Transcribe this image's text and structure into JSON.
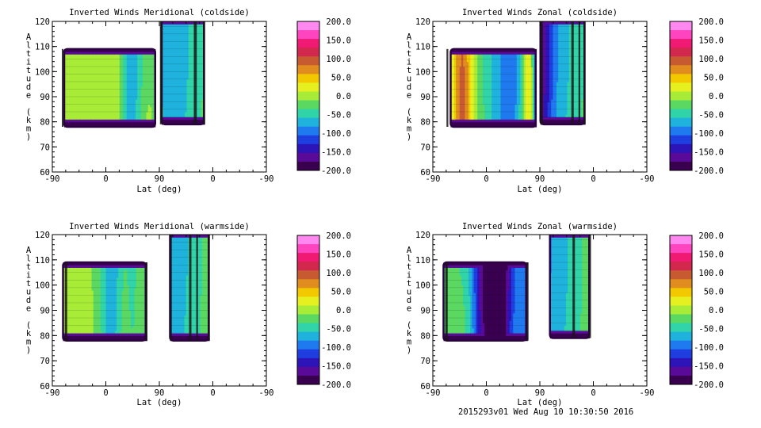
{
  "footer": "2015293v01 Wed Aug 10 10:30:50 2016",
  "colorbar": {
    "labels": [
      "200.0",
      "150.0",
      "100.0",
      "50.0",
      "0.0",
      "-50.0",
      "-100.0",
      "-150.0",
      "-200.0"
    ],
    "colors": [
      "#ff88f0",
      "#ff44c0",
      "#f01a72",
      "#d2284e",
      "#c85a32",
      "#e08c1e",
      "#f2c800",
      "#e6f020",
      "#a8ec38",
      "#5ad862",
      "#30d4a8",
      "#1eb2dc",
      "#1e7aee",
      "#1e3ee0",
      "#2c14b8",
      "#5a0a98",
      "#3a0050"
    ]
  },
  "chart_data": [
    {
      "type": "heatmap",
      "title": "Inverted Winds Meridional (coldside)",
      "xlabel": "Lat (deg)",
      "ylabel": "Altitude (km)",
      "xticks": [
        "-90",
        "0",
        "90",
        "0",
        "-90"
      ],
      "yticks": [
        "120",
        "110",
        "100",
        "90",
        "80",
        "70",
        "60"
      ],
      "ylim": [
        60,
        120
      ],
      "zlim": [
        -200,
        200
      ],
      "blobs": [
        [
          -90,
          88,
          113,
          78,
          109,
          0
        ],
        [
          -10,
          50,
          -14,
          35,
          120,
          78
        ],
        [
          -3,
          48,
          99,
          18,
          110,
          77
        ],
        [
          -30,
          40,
          88,
          12,
          84,
          62
        ],
        [
          78,
          74,
          62,
          21,
          105,
          82
        ],
        [
          37,
          20,
          95,
          24,
          97,
          45
        ]
      ]
    },
    {
      "type": "heatmap",
      "title": "Inverted Winds Zonal (coldside)",
      "xlabel": "Lat (deg)",
      "ylabel": "Altitude (km)",
      "xticks": [
        "-90",
        "0",
        "90",
        "0",
        "-90"
      ],
      "yticks": [
        "120",
        "110",
        "100",
        "90",
        "80",
        "70",
        "60"
      ],
      "ylim": [
        60,
        120
      ],
      "zlim": [
        -200,
        200
      ],
      "blobs": [
        [
          -10,
          20,
          -14,
          35,
          122,
          79
        ],
        [
          -90,
          88,
          113,
          78,
          109,
          0
        ],
        [
          -3,
          48,
          99,
          18,
          110,
          77
        ],
        [
          95,
          -40,
          87,
          16,
          84,
          62
        ],
        [
          88,
          68,
          90,
          12,
          88,
          82
        ],
        [
          65,
          75,
          105,
          10,
          97,
          47
        ],
        [
          -80,
          92,
          111,
          18,
          120,
          86
        ],
        [
          -34,
          26,
          90,
          30,
          100,
          74
        ]
      ]
    },
    {
      "type": "heatmap",
      "title": "Inverted Winds Meridional (warmside)",
      "xlabel": "Lat (deg)",
      "ylabel": "Altitude (km)",
      "xticks": [
        "-90",
        "0",
        "90",
        "0",
        "-90"
      ],
      "yticks": [
        "120",
        "110",
        "100",
        "90",
        "80",
        "70",
        "60"
      ],
      "ylim": [
        60,
        120
      ],
      "zlim": [
        -200,
        200
      ],
      "blobs": [
        [
          -100,
          12,
          107,
          20,
          108,
          62
        ],
        [
          -90,
          86,
          113,
          78,
          109,
          0
        ],
        [
          -3,
          48,
          99,
          18,
          110,
          77
        ],
        [
          62,
          62,
          112,
          14,
          116,
          60
        ],
        [
          52,
          25,
          90,
          20,
          84,
          77
        ],
        [
          28,
          10,
          95,
          26,
          98,
          41
        ]
      ]
    },
    {
      "type": "heatmap",
      "title": "Inverted Winds Zonal (warmside)",
      "xlabel": "Lat (deg)",
      "ylabel": "Altitude (km)",
      "xticks": [
        "-90",
        "0",
        "90",
        "0",
        "-90"
      ],
      "yticks": [
        "120",
        "110",
        "100",
        "90",
        "80",
        "70",
        "60"
      ],
      "ylim": [
        60,
        120
      ],
      "zlim": [
        -200,
        200
      ],
      "blobs": [
        [
          -160,
          -10,
          116,
          40,
          120,
          75
        ],
        [
          -100,
          15,
          108,
          20,
          105,
          52
        ],
        [
          -90,
          86,
          113,
          78,
          109,
          0
        ],
        [
          -3,
          48,
          99,
          18,
          110,
          77
        ],
        [
          78,
          -30,
          96,
          20,
          88,
          75
        ],
        [
          58,
          10,
          96,
          16,
          97,
          43
        ],
        [
          -72,
          20,
          105,
          18,
          100,
          63
        ]
      ]
    }
  ]
}
